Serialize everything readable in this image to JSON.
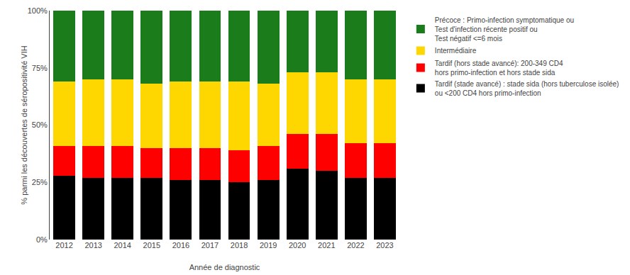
{
  "chart_data": {
    "type": "bar",
    "stacked": true,
    "categories": [
      "2012",
      "2013",
      "2014",
      "2015",
      "2016",
      "2017",
      "2018",
      "2019",
      "2020",
      "2021",
      "2022",
      "2023"
    ],
    "series": [
      {
        "name": "Tardif (stade avancé) : stade sida (hors tuberculose isolée)\nou <200 CD4 hors primo-infection",
        "color": "#000000",
        "values": [
          28,
          27,
          27,
          27,
          26,
          26,
          25,
          26,
          31,
          30,
          27,
          27
        ]
      },
      {
        "name": "Tardif (hors stade avancé): 200-349 CD4\nhors primo-infection et hors stade sida",
        "color": "#FF0000",
        "values": [
          13,
          14,
          14,
          13,
          14,
          14,
          14,
          15,
          15,
          16,
          15,
          15
        ]
      },
      {
        "name": "Intermédiaire",
        "color": "#FFD700",
        "values": [
          28,
          29,
          29,
          28,
          29,
          29,
          30,
          27,
          27,
          27,
          28,
          28
        ]
      },
      {
        "name": "Précoce : Primo-infection symptomatique ou\nTest d'infection récente positif ou\nTest négatif <=6 mois",
        "color": "#1a7c1a",
        "values": [
          31,
          30,
          30,
          32,
          31,
          31,
          31,
          32,
          27,
          27,
          30,
          30
        ]
      }
    ],
    "xlabel": "Année de diagnostic",
    "ylabel": "% parmi les découvertes de séropositivité VIH",
    "ylim": [
      0,
      100
    ],
    "yticks": [
      {
        "value": 0,
        "label": "0%"
      },
      {
        "value": 25,
        "label": "25%"
      },
      {
        "value": 50,
        "label": "50%"
      },
      {
        "value": 75,
        "label": "75%"
      },
      {
        "value": 100,
        "label": "100%"
      }
    ],
    "grid": false,
    "legend": "right"
  }
}
